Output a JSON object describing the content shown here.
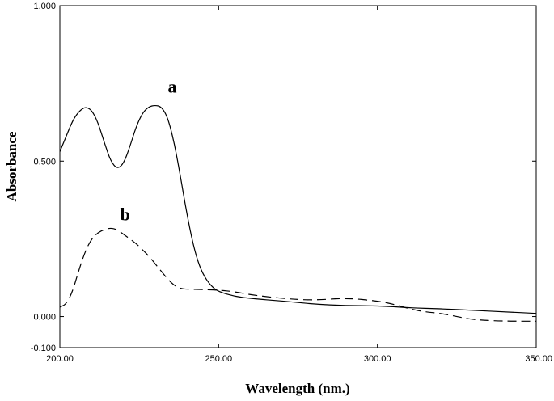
{
  "chart_data": {
    "type": "line",
    "title": "",
    "xlabel": "Wavelength (nm.)",
    "ylabel": "Absorbance",
    "xlim": [
      200,
      350
    ],
    "ylim": [
      -0.1,
      1.0
    ],
    "x_ticks": [
      "200.00",
      "250.00",
      "300.00",
      "350.00"
    ],
    "y_ticks": [
      "1.000",
      "0.500",
      "0.000",
      "-0.100"
    ],
    "y_tick_values": [
      1.0,
      0.5,
      0.0,
      -0.1
    ],
    "x_tick_values": [
      200,
      250,
      300,
      350
    ],
    "grid": false,
    "series": [
      {
        "name": "a",
        "style": "solid",
        "color": "#000000",
        "x": [
          200,
          202,
          204,
          206,
          208,
          210,
          212,
          214,
          216,
          218,
          220,
          222,
          224,
          226,
          228,
          230,
          232,
          234,
          236,
          238,
          240,
          242,
          244,
          246,
          248,
          250,
          255,
          260,
          270,
          280,
          290,
          300,
          310,
          320,
          330,
          340,
          350
        ],
        "y": [
          0.53,
          0.58,
          0.63,
          0.66,
          0.675,
          0.665,
          0.625,
          0.56,
          0.5,
          0.475,
          0.49,
          0.545,
          0.61,
          0.655,
          0.675,
          0.68,
          0.675,
          0.64,
          0.56,
          0.45,
          0.33,
          0.23,
          0.16,
          0.12,
          0.095,
          0.08,
          0.065,
          0.058,
          0.05,
          0.04,
          0.035,
          0.035,
          0.028,
          0.025,
          0.02,
          0.015,
          0.01
        ]
      },
      {
        "name": "b",
        "style": "dashed",
        "color": "#000000",
        "x": [
          200,
          202,
          204,
          206,
          208,
          210,
          212,
          214,
          216,
          218,
          220,
          222,
          224,
          226,
          228,
          230,
          232,
          234,
          236,
          238,
          240,
          245,
          250,
          255,
          260,
          270,
          280,
          290,
          300,
          305,
          310,
          315,
          320,
          325,
          330,
          340,
          350
        ],
        "y": [
          0.03,
          0.04,
          0.08,
          0.15,
          0.21,
          0.25,
          0.27,
          0.28,
          0.285,
          0.28,
          0.265,
          0.25,
          0.235,
          0.215,
          0.195,
          0.17,
          0.145,
          0.12,
          0.1,
          0.09,
          0.088,
          0.087,
          0.085,
          0.08,
          0.07,
          0.058,
          0.052,
          0.06,
          0.05,
          0.04,
          0.025,
          0.015,
          0.01,
          0.0,
          -0.01,
          -0.015,
          -0.015
        ]
      }
    ],
    "annotations": [
      {
        "text": "a",
        "x": 234,
        "y": 0.72
      },
      {
        "text": "b",
        "x": 219,
        "y": 0.31
      }
    ]
  }
}
